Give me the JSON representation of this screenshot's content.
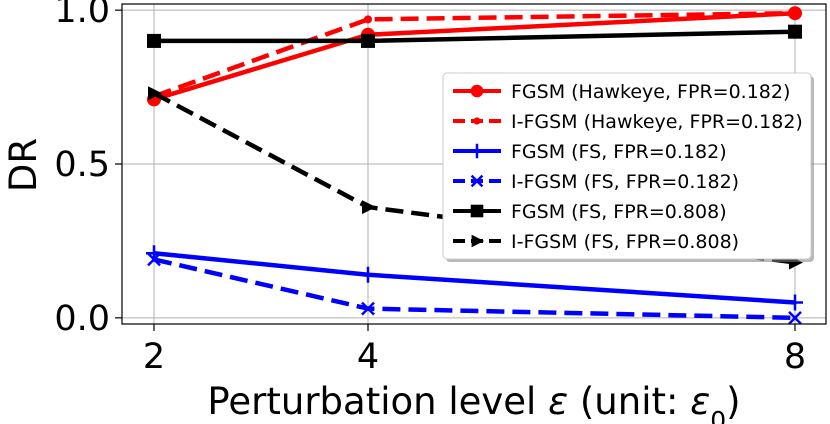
{
  "chart_data": {
    "type": "line",
    "title": "",
    "xlabel_main": "Perturbation level ",
    "xlabel_eps": "ε",
    "xlabel_unit": " (unit: ",
    "xlabel_eps0_base": "ε",
    "xlabel_eps0_sub": "0",
    "xlabel_close": ")",
    "ylabel": "DR",
    "x": [
      2,
      4,
      8
    ],
    "xticks": [
      "2",
      "4",
      "8"
    ],
    "yticks": [
      "0.0",
      "0.5",
      "1.0"
    ],
    "ylim": [
      -0.02,
      1.02
    ],
    "grid": true,
    "legend_position": "center-right",
    "series": [
      {
        "name": "FGSM (Hawkeye, FPR=0.182)",
        "values": [
          0.71,
          0.92,
          0.99
        ],
        "color": "#ff0000",
        "dash": "solid",
        "marker": "circle"
      },
      {
        "name": "I-FGSM (Hawkeye, FPR=0.182)",
        "values": [
          0.72,
          0.97,
          0.99
        ],
        "color": "#ff0000",
        "dash": "dashed",
        "marker": "point"
      },
      {
        "name": "FGSM (FS, FPR=0.182)",
        "values": [
          0.21,
          0.14,
          0.05
        ],
        "color": "#0000ff",
        "dash": "solid",
        "marker": "plus"
      },
      {
        "name": "I-FGSM (FS, FPR=0.182)",
        "values": [
          0.19,
          0.03,
          0.0
        ],
        "color": "#0000ff",
        "dash": "dashed",
        "marker": "x"
      },
      {
        "name": "FGSM (FS, FPR=0.808)",
        "values": [
          0.9,
          0.9,
          0.93
        ],
        "color": "#000000",
        "dash": "solid",
        "marker": "square"
      },
      {
        "name": "I-FGSM (FS, FPR=0.808)",
        "values": [
          0.73,
          0.36,
          0.18
        ],
        "color": "#000000",
        "dash": "dashed",
        "marker": "triangle-right"
      }
    ]
  }
}
